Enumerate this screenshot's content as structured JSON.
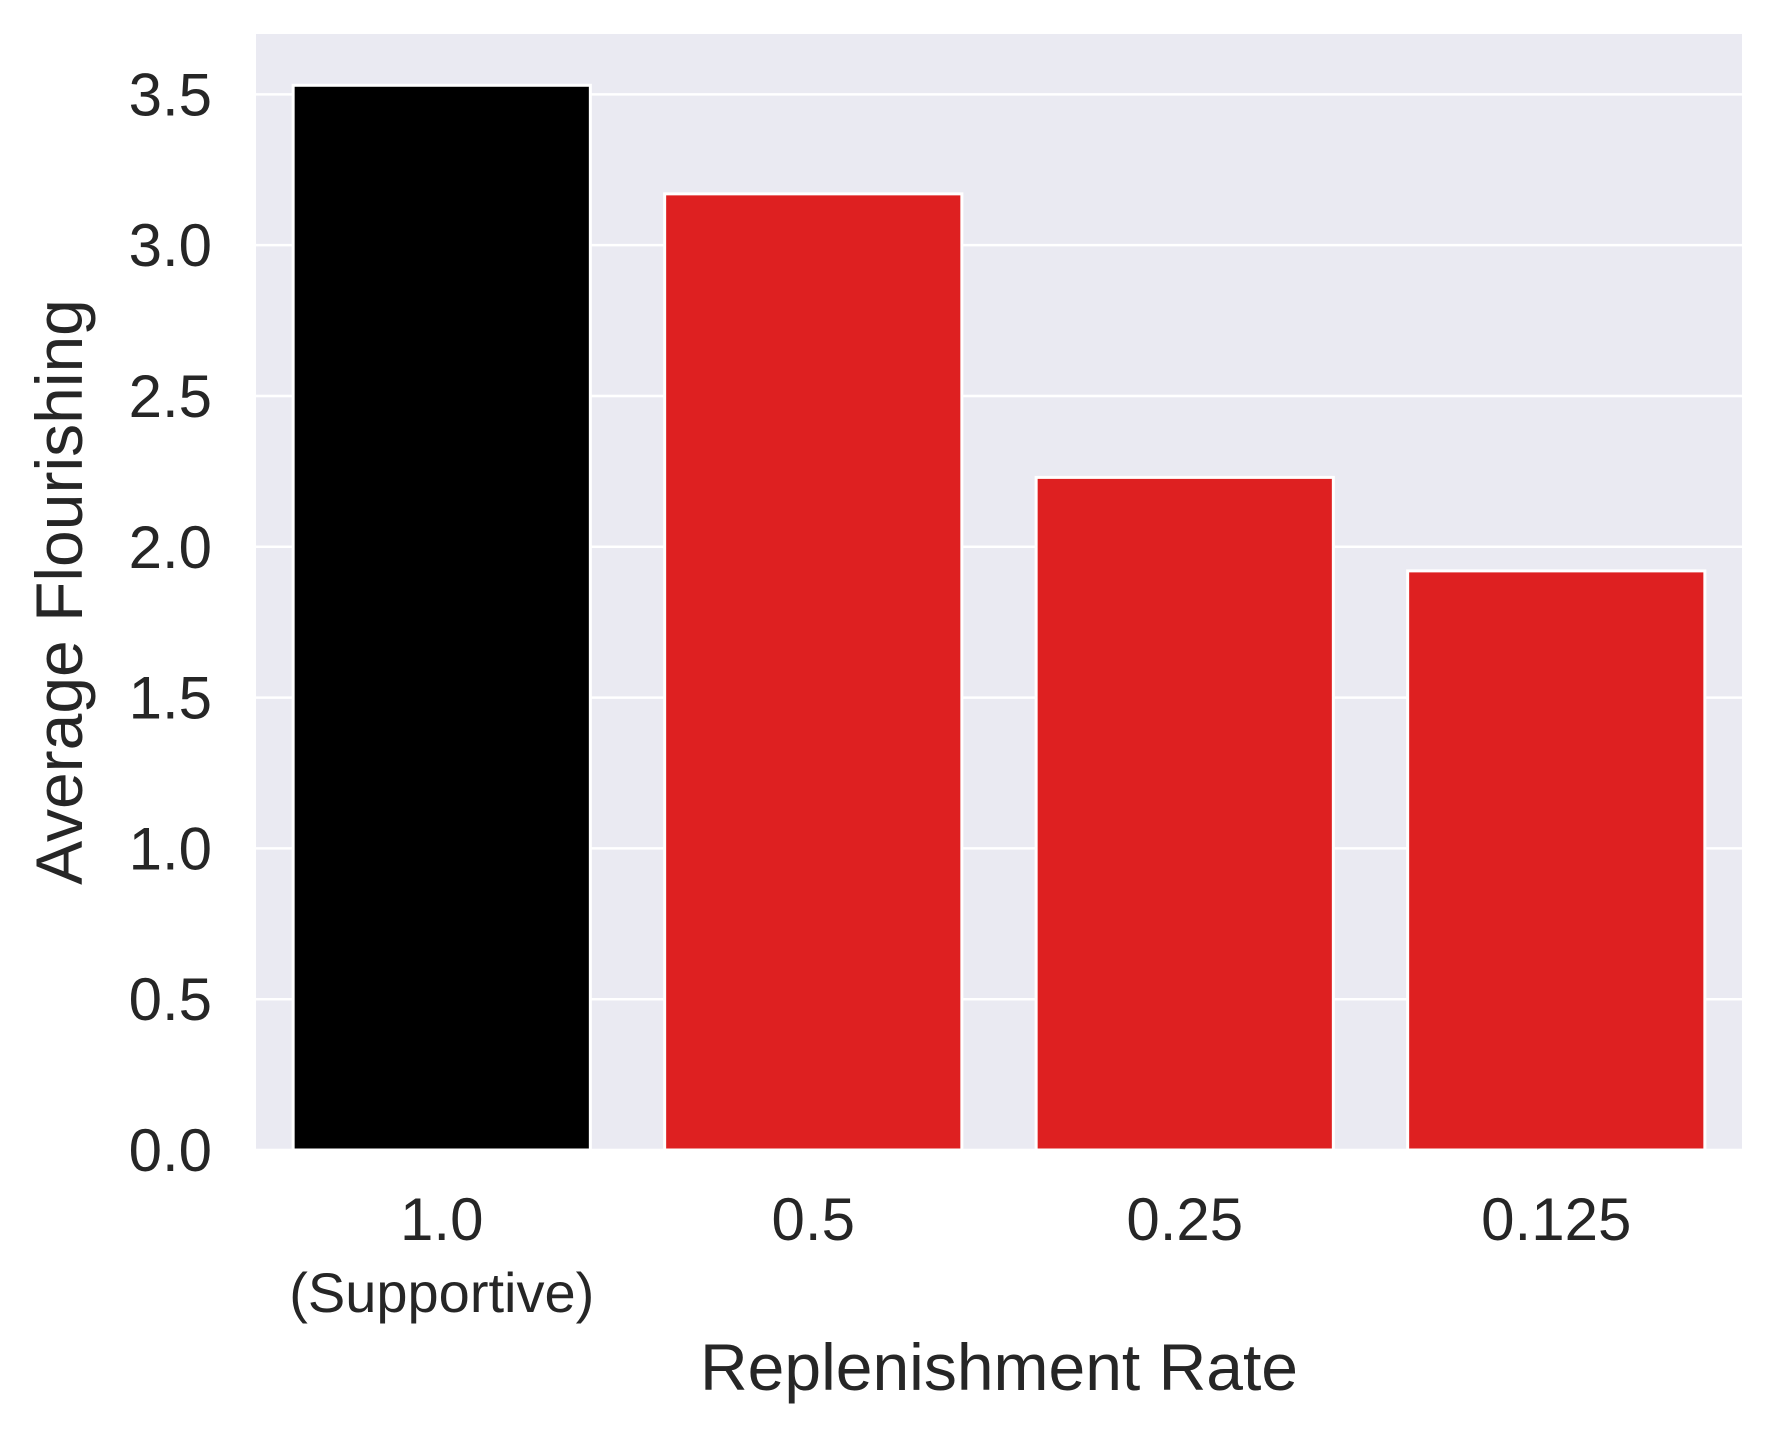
{
  "chart_data": {
    "type": "bar",
    "title": "",
    "xlabel": "Replenishment Rate",
    "ylabel": "Average Flourishing",
    "categories": [
      "1.0",
      "0.5",
      "0.25",
      "0.125"
    ],
    "category_sublabels": [
      "(Supportive)",
      "",
      "",
      ""
    ],
    "values": [
      3.53,
      3.17,
      2.23,
      1.92
    ],
    "bar_colors": [
      "#000000",
      "#de2021",
      "#de2021",
      "#de2021"
    ],
    "ylim": [
      0,
      3.7
    ],
    "yticks": [
      "0.0",
      "0.5",
      "1.0",
      "1.5",
      "2.0",
      "2.5",
      "3.0",
      "3.5"
    ],
    "grid": true,
    "colors": {
      "plot_background": "#eaeaf2",
      "grid": "#ffffff",
      "text": "#262626",
      "bar_edge": "#ffffff"
    }
  }
}
